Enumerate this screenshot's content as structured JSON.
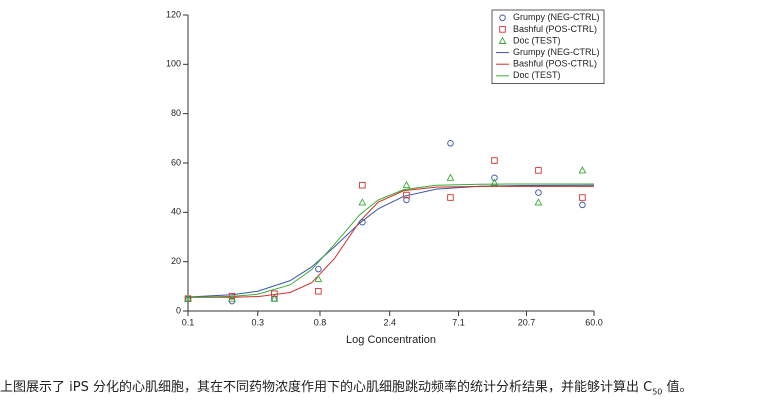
{
  "chart_data": {
    "type": "scatter",
    "x_label": "Log Concentration",
    "x_scale": "log",
    "xlim": [
      0.1,
      60
    ],
    "xticks": [
      0.1,
      0.3,
      0.8,
      2.4,
      7.1,
      20.7,
      {
        "value": 60,
        "label": "60.0"
      }
    ],
    "ylim": [
      0,
      120
    ],
    "yticks": [
      0,
      20,
      40,
      60,
      80,
      100,
      120
    ],
    "legend": "upper right",
    "series": [
      {
        "name": "Grumpy (NEG-CTRL)",
        "type": "scatter",
        "marker": "circle",
        "color": "#3a55a4",
        "x": [
          0.1,
          0.2,
          0.39,
          0.78,
          1.56,
          3.125,
          6.25,
          12.5,
          25,
          50
        ],
        "values": [
          5,
          4,
          5,
          17,
          36,
          45,
          68,
          54,
          48,
          43
        ]
      },
      {
        "name": "Bashful (POS-CTRL)",
        "type": "scatter",
        "marker": "square",
        "color": "#d0312d",
        "x": [
          0.1,
          0.2,
          0.39,
          0.78,
          1.56,
          3.125,
          6.25,
          12.5,
          25,
          50
        ],
        "values": [
          5,
          6,
          7,
          8,
          51,
          47,
          46,
          61,
          57,
          46
        ]
      },
      {
        "name": "Doc (TEST)",
        "type": "scatter",
        "marker": "triangle",
        "color": "#3aa935",
        "x": [
          0.1,
          0.2,
          0.39,
          0.78,
          1.56,
          3.125,
          6.25,
          12.5,
          25,
          50
        ],
        "values": [
          5,
          5,
          5,
          13,
          44,
          51,
          54,
          52,
          44,
          57
        ]
      },
      {
        "name": "Grumpy (NEG-CTRL)",
        "type": "line",
        "color": "#3a55a4",
        "x": [
          0.1,
          0.2,
          0.3,
          0.5,
          0.7,
          1,
          1.5,
          2,
          3,
          5,
          10,
          20,
          60
        ],
        "values": [
          5.7,
          6.6,
          8.0,
          12.3,
          17.8,
          25.9,
          35.7,
          41.4,
          46.5,
          49.4,
          50.6,
          50.9,
          51.0
        ]
      },
      {
        "name": "Bashful (POS-CTRL)",
        "type": "line",
        "color": "#d0312d",
        "x": [
          0.1,
          0.2,
          0.3,
          0.5,
          0.7,
          1,
          1.5,
          2,
          3,
          5,
          10,
          20,
          60
        ],
        "values": [
          5.5,
          5.6,
          5.85,
          7.5,
          11.4,
          21.1,
          36.4,
          44.1,
          48.8,
          50.2,
          50.5,
          50.5,
          50.5
        ]
      },
      {
        "name": "Doc (TEST)",
        "type": "line",
        "color": "#3aa935",
        "x": [
          0.1,
          0.2,
          0.3,
          0.5,
          0.7,
          1,
          1.5,
          2,
          3,
          5,
          10,
          20,
          60
        ],
        "values": [
          5.56,
          5.94,
          6.8,
          10.6,
          16.7,
          26.9,
          39.1,
          45.0,
          49.2,
          51.0,
          51.4,
          51.5,
          51.5
        ]
      }
    ]
  },
  "caption": {
    "parts": [
      "上图展示了 iPS 分化的心肌细胞，其在不同药物浓度作用下的心肌细胞跳动频率的统计分析结果，并能够计算出 C",
      "50",
      " 值。"
    ]
  }
}
